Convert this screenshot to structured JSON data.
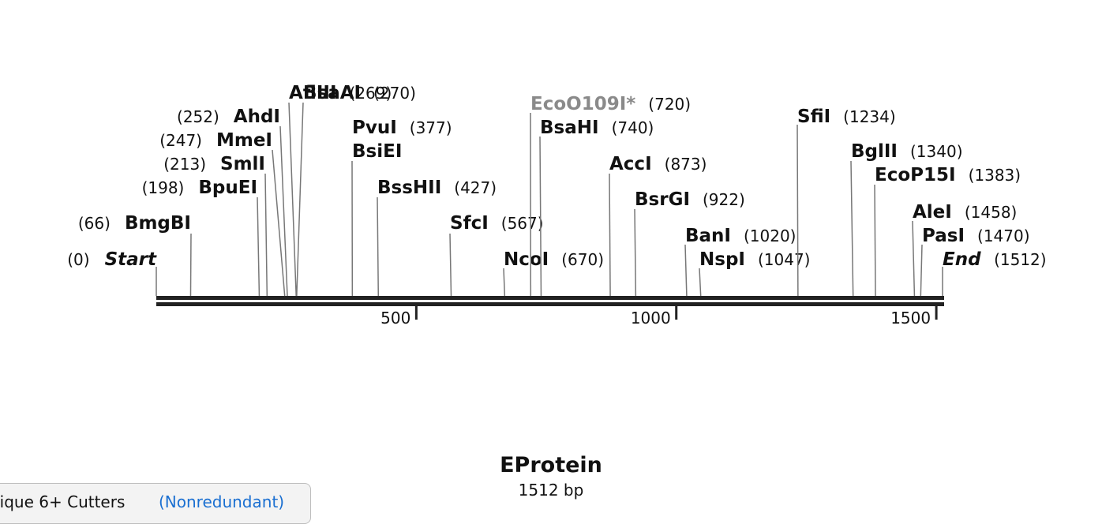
{
  "diagram": {
    "sequence_length_bp": 1512,
    "scale_ticks": [
      {
        "value": 500,
        "label": "500"
      },
      {
        "value": 1000,
        "label": "1000"
      },
      {
        "value": 1500,
        "label": "1500"
      }
    ],
    "sites": [
      {
        "name": "Start",
        "pos_label": "(0)",
        "position": 0,
        "kind": "terminus"
      },
      {
        "name": "BmgBI",
        "pos_label": "(66)",
        "position": 66
      },
      {
        "name": "BpuEI",
        "pos_label": "(198)",
        "position": 198
      },
      {
        "name": "SmlI",
        "pos_label": "(213)",
        "position": 213
      },
      {
        "name": "MmeI",
        "pos_label": "(247)",
        "position": 247
      },
      {
        "name": "AhdI",
        "pos_label": "(252)",
        "position": 252
      },
      {
        "name": "AflIII",
        "pos_label": "(269)",
        "position": 269
      },
      {
        "name": "BsaAI",
        "pos_label": "(270)",
        "position": 270
      },
      {
        "name": "PvuI",
        "pos_label": "(377)",
        "position": 377
      },
      {
        "name": "BsiEI",
        "pos_label": "",
        "position": 377
      },
      {
        "name": "BssHII",
        "pos_label": "(427)",
        "position": 427
      },
      {
        "name": "SfcI",
        "pos_label": "(567)",
        "position": 567
      },
      {
        "name": "NcoI",
        "pos_label": "(670)",
        "position": 670
      },
      {
        "name": "EcoO109I*",
        "pos_label": "(720)",
        "position": 720,
        "kind": "gray"
      },
      {
        "name": "BsaHI",
        "pos_label": "(740)",
        "position": 740
      },
      {
        "name": "AccI",
        "pos_label": "(873)",
        "position": 873
      },
      {
        "name": "BsrGI",
        "pos_label": "(922)",
        "position": 922
      },
      {
        "name": "BanI",
        "pos_label": "(1020)",
        "position": 1020
      },
      {
        "name": "NspI",
        "pos_label": "(1047)",
        "position": 1047
      },
      {
        "name": "SfiI",
        "pos_label": "(1234)",
        "position": 1234
      },
      {
        "name": "BglII",
        "pos_label": "(1340)",
        "position": 1340
      },
      {
        "name": "EcoP15I",
        "pos_label": "(1383)",
        "position": 1383
      },
      {
        "name": "AleI",
        "pos_label": "(1458)",
        "position": 1458
      },
      {
        "name": "PasI",
        "pos_label": "(1470)",
        "position": 1470
      },
      {
        "name": "End",
        "pos_label": "(1512)",
        "position": 1512,
        "kind": "terminus"
      }
    ]
  },
  "title": "EProtein",
  "subtitle": "1512 bp",
  "tab": {
    "label": "nique 6+ Cutters",
    "link": "(Nonredundant)",
    "link_color": "#1a6fd1"
  },
  "colors": {
    "backbone": "#222222",
    "site_line": "#777777",
    "gray_label": "#8a8a8a"
  }
}
